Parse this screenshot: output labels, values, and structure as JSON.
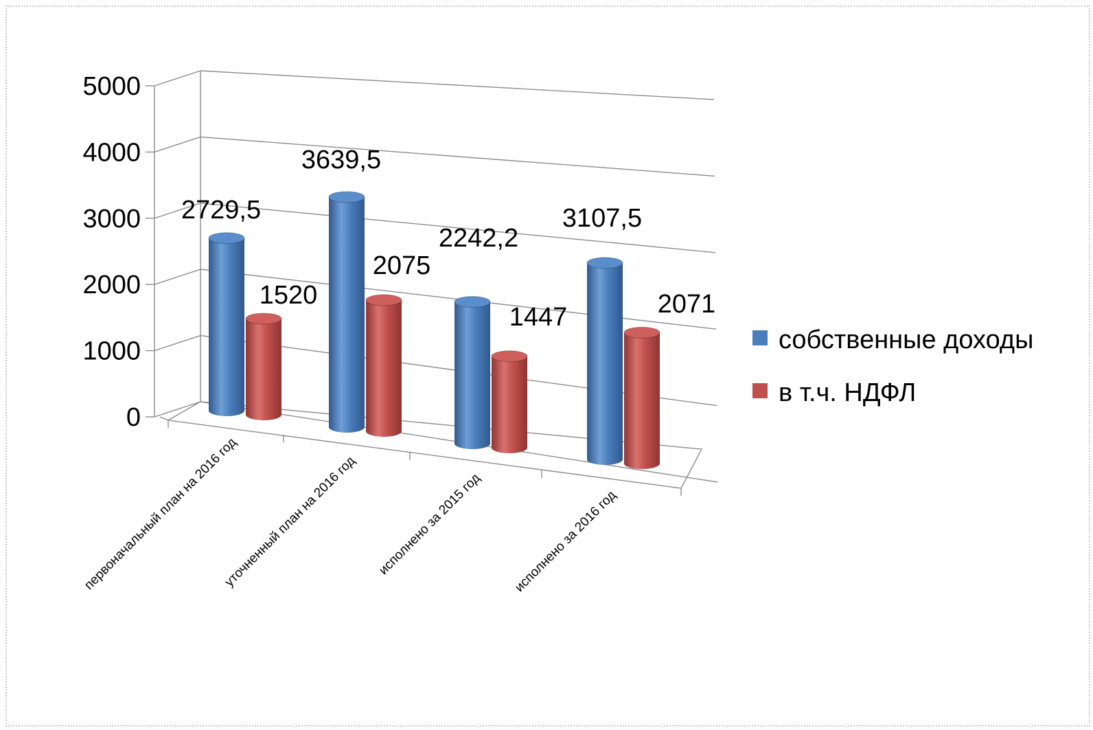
{
  "chart_data": {
    "type": "bar",
    "categories": [
      "первоначальный план на 2016 год",
      "уточненный  план на 2016 год",
      "исполнено за 2015 год",
      "исполнено за 2016 год"
    ],
    "series": [
      {
        "name": "собственные доходы",
        "values": [
          2729.5,
          3639.5,
          2242.2,
          3107.5
        ],
        "labels": [
          "2729,5",
          "3639,5",
          "2242,2",
          "3107,5"
        ],
        "color": "#4a7ebb"
      },
      {
        "name": "в т.ч. НДФЛ",
        "values": [
          1520,
          2075,
          1447,
          2071
        ],
        "labels": [
          "1520",
          "2075",
          "1447",
          "2071"
        ],
        "color": "#c0504d"
      }
    ],
    "yticks": [
      "0",
      "1000",
      "2000",
      "3000",
      "4000",
      "5000"
    ],
    "ylim": [
      0,
      5000
    ],
    "grid": true,
    "legend": "right",
    "style": "3d-cylinder"
  }
}
